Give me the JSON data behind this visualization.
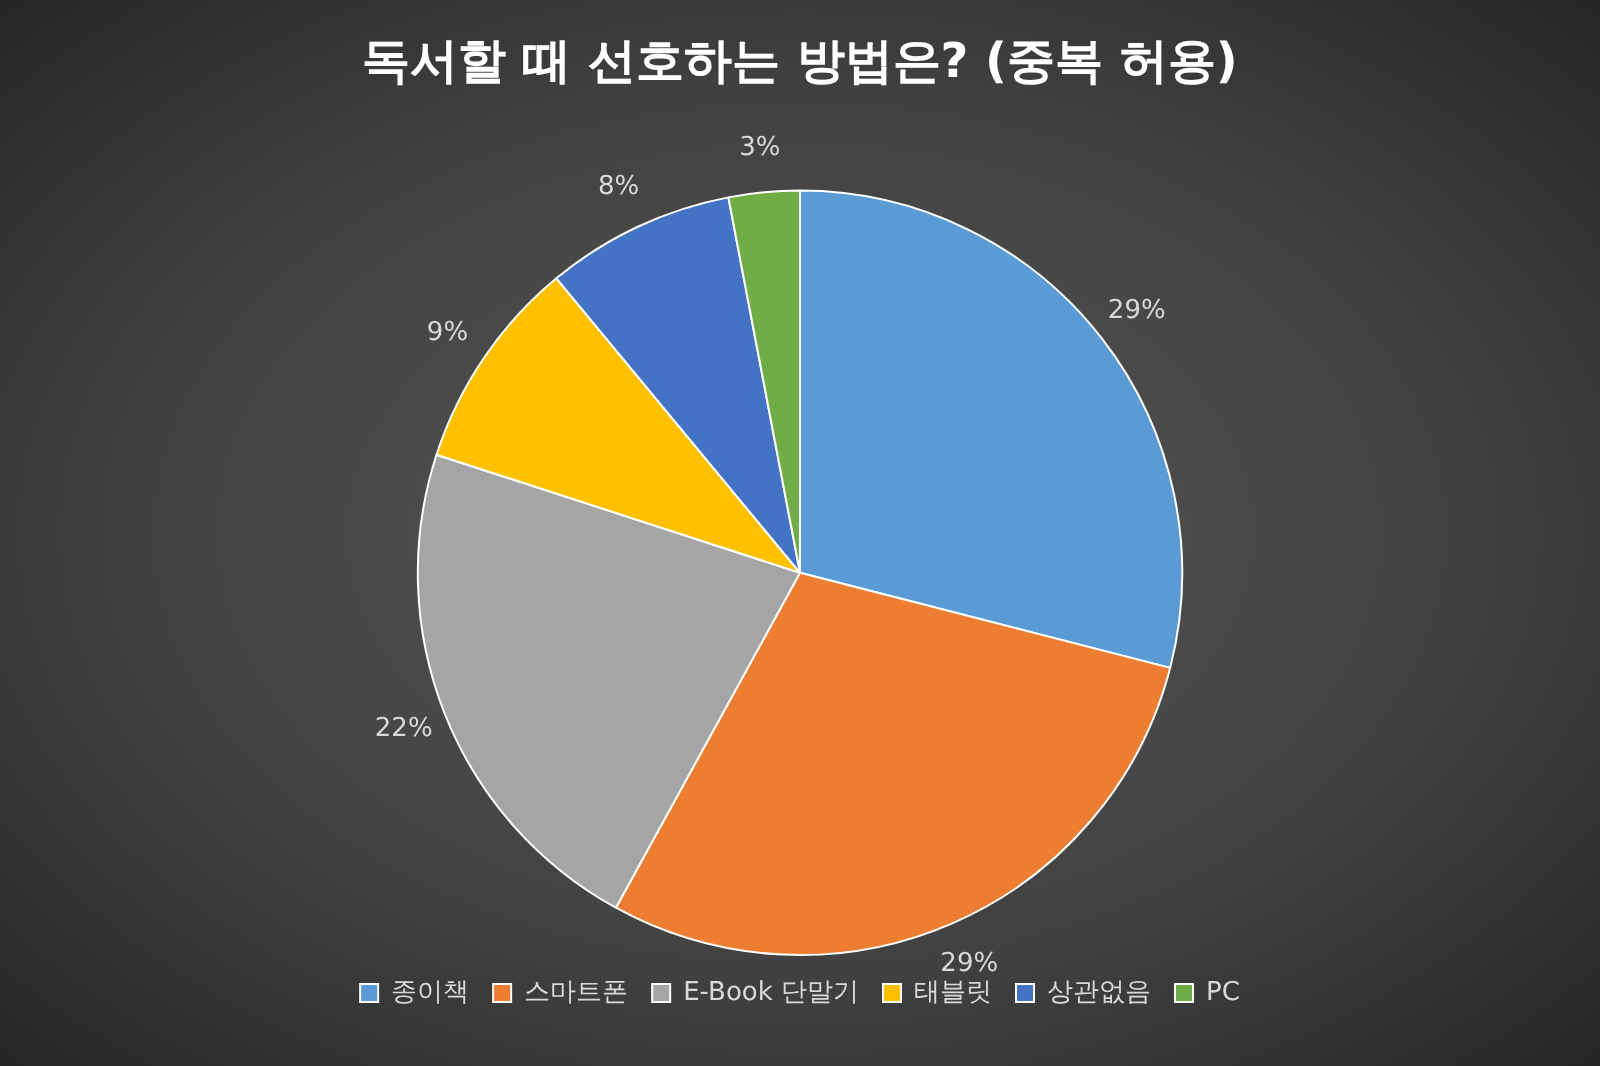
{
  "chart_data": {
    "type": "pie",
    "title": "독서할 때 선호하는 방법은? (중복 허용)",
    "categories": [
      "종이책",
      "스마트폰",
      "E-Book 단말기",
      "태블릿",
      "상관없음",
      "PC"
    ],
    "values": [
      29,
      29,
      22,
      9,
      8,
      3
    ],
    "colors": [
      "#5b9bd5",
      "#ed7d31",
      "#a5a5a5",
      "#ffc000",
      "#4472c4",
      "#70ad47"
    ],
    "value_labels": [
      "29%",
      "29%",
      "22%",
      "9%",
      "8%",
      "3%"
    ],
    "legend": "bottom"
  }
}
